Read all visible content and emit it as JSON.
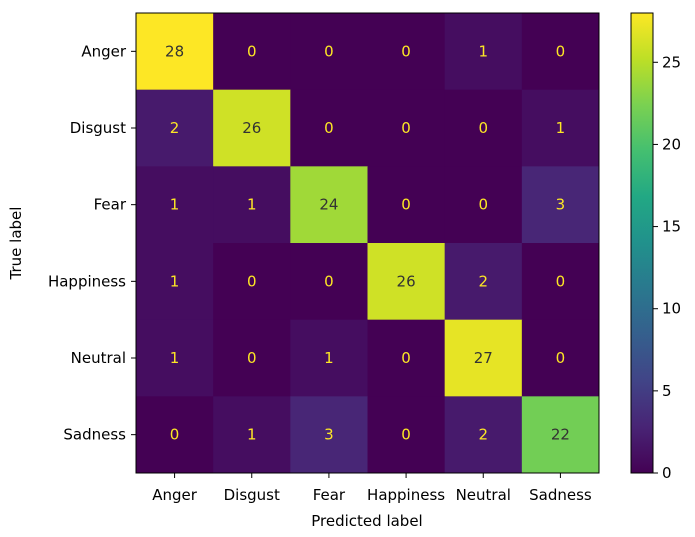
{
  "chart_data": {
    "type": "heatmap",
    "title": "",
    "xlabel": "Predicted label",
    "ylabel": "True label",
    "x_categories": [
      "Anger",
      "Disgust",
      "Fear",
      "Happiness",
      "Neutral",
      "Sadness"
    ],
    "y_categories": [
      "Anger",
      "Disgust",
      "Fear",
      "Happiness",
      "Neutral",
      "Sadness"
    ],
    "matrix": [
      [
        28,
        0,
        0,
        0,
        1,
        0
      ],
      [
        2,
        26,
        0,
        0,
        0,
        1
      ],
      [
        1,
        1,
        24,
        0,
        0,
        3
      ],
      [
        1,
        0,
        0,
        26,
        2,
        0
      ],
      [
        1,
        0,
        1,
        0,
        27,
        0
      ],
      [
        0,
        1,
        3,
        0,
        2,
        22
      ]
    ],
    "colormap": "viridis",
    "colorbar": {
      "range": [
        0,
        28
      ],
      "ticks": [
        0,
        5,
        10,
        15,
        20,
        25
      ]
    },
    "text_color_light": "#fde725",
    "text_color_dark": "#333333"
  }
}
